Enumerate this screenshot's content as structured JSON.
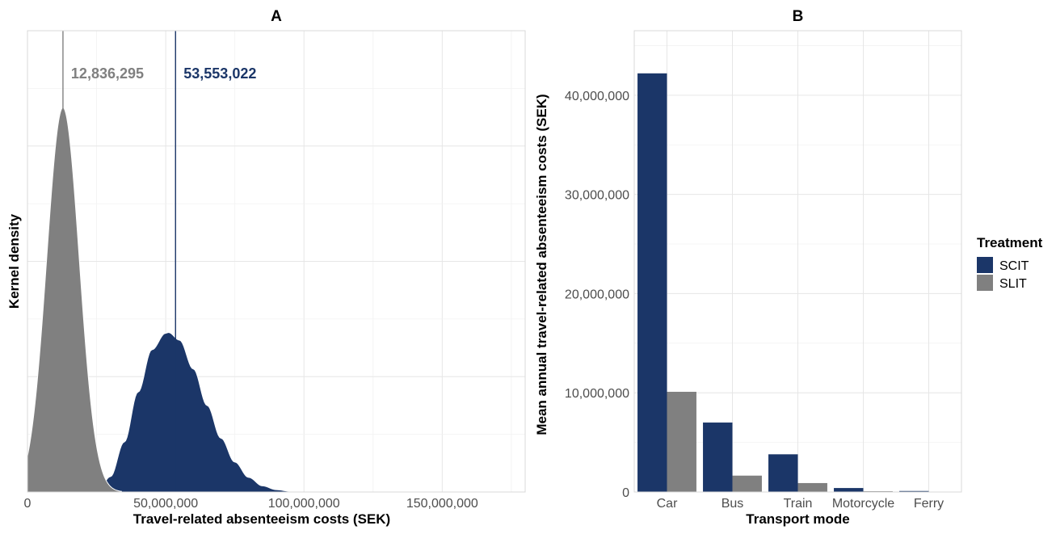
{
  "chart_data": [
    {
      "panel": "A",
      "type": "area",
      "title": "A",
      "xlabel": "Travel-related absenteeism costs (SEK)",
      "ylabel": "Kernel density",
      "xlim": [
        0,
        180000000
      ],
      "ylim": [
        0,
        1.2
      ],
      "x_ticks": [
        0,
        50000000,
        100000000,
        150000000
      ],
      "x_tick_labels": [
        "0",
        "50,000,000",
        "100,000,000",
        "150,000,000"
      ],
      "grid": true,
      "series": [
        {
          "name": "SLIT",
          "color": "#808080",
          "mean": 12836295,
          "mean_label": "12,836,295",
          "peak_x": 12836295,
          "peak_density": 1.0,
          "sd": 5900000,
          "x": [
            0,
            3000000,
            6000000,
            9000000,
            12000000,
            12836295,
            15000000,
            18000000,
            21000000,
            24000000,
            27000000,
            30000000,
            33000000
          ],
          "density": [
            0.095,
            0.25,
            0.51,
            0.82,
            0.99,
            1.0,
            0.94,
            0.71,
            0.44,
            0.23,
            0.1,
            0.035,
            0.01
          ]
        },
        {
          "name": "SCIT",
          "color": "#1b3668",
          "mean": 53553022,
          "mean_label": "53,553,022",
          "peak_x": 51000000,
          "peak_density": 0.415,
          "x": [
            26000000,
            30000000,
            35000000,
            40000000,
            45000000,
            50000000,
            51000000,
            55000000,
            60000000,
            65000000,
            70000000,
            75000000,
            80000000,
            85000000,
            90000000,
            95000000,
            100000000
          ],
          "density": [
            0.01,
            0.04,
            0.13,
            0.26,
            0.37,
            0.413,
            0.415,
            0.395,
            0.32,
            0.225,
            0.14,
            0.078,
            0.038,
            0.016,
            0.006,
            0.002,
            0.0
          ]
        }
      ]
    },
    {
      "panel": "B",
      "type": "bar",
      "title": "B",
      "xlabel": "Transport mode",
      "ylabel": "Mean annual travel-related absenteeism costs (SEK)",
      "categories": [
        "Car",
        "Bus",
        "Train",
        "Motorcycle",
        "Ferry"
      ],
      "ylim": [
        0,
        46500000
      ],
      "y_ticks": [
        0,
        10000000,
        20000000,
        30000000,
        40000000
      ],
      "y_tick_labels": [
        "0",
        "10,000,000",
        "20,000,000",
        "30,000,000",
        "40,000,000"
      ],
      "grid": true,
      "series": [
        {
          "name": "SCIT",
          "color": "#1b3668",
          "values": [
            42200000,
            7000000,
            3800000,
            400000,
            100000
          ]
        },
        {
          "name": "SLIT",
          "color": "#808080",
          "values": [
            10100000,
            1650000,
            900000,
            80000,
            20000
          ]
        }
      ]
    }
  ],
  "legend": {
    "title": "Treatment",
    "placement": "right",
    "items": [
      {
        "label": "SCIT",
        "color": "#1b3668"
      },
      {
        "label": "SLIT",
        "color": "#808080"
      }
    ]
  }
}
